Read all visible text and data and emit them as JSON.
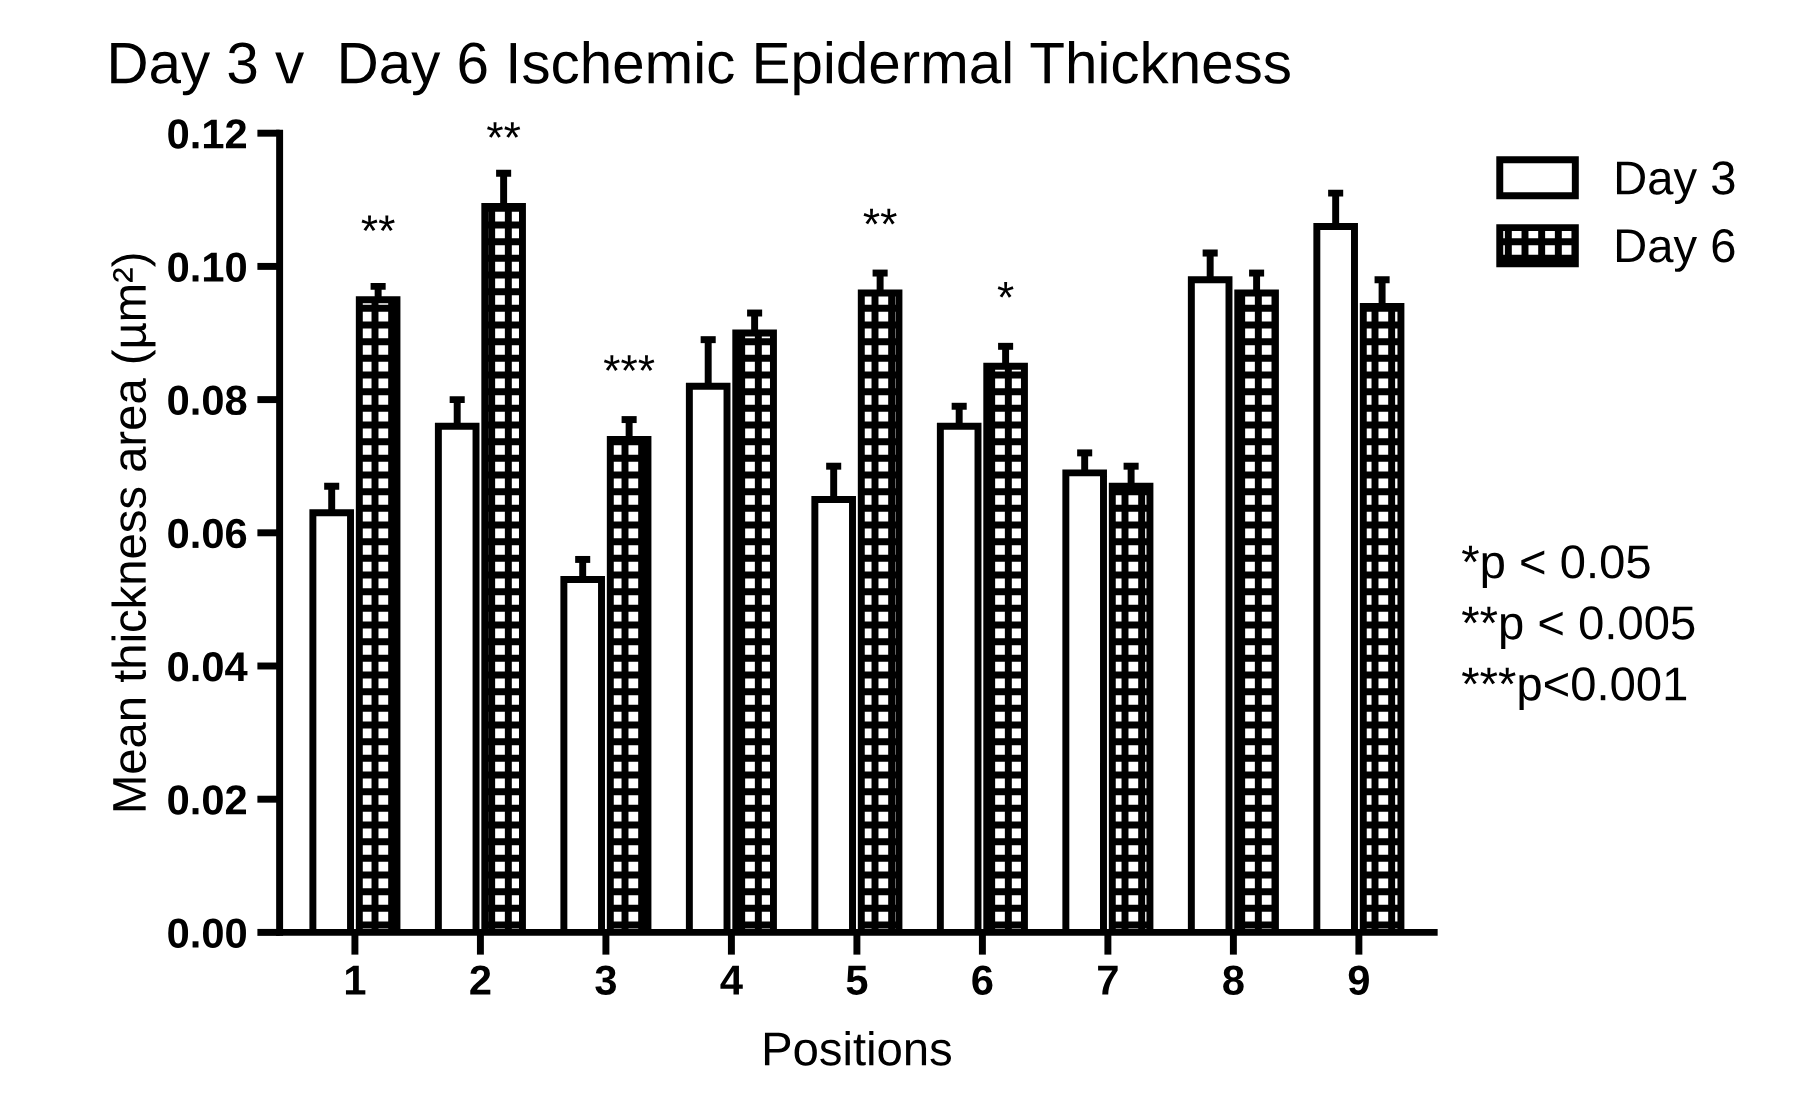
{
  "chart_data": {
    "type": "bar",
    "title": "Day 3 v  Day 6 Ischemic Epidermal Thickness",
    "xlabel": "Positions",
    "ylabel": "Mean thickness area (µm²)",
    "categories": [
      "1",
      "2",
      "3",
      "4",
      "5",
      "6",
      "7",
      "8",
      "9"
    ],
    "series": [
      {
        "name": "Day 3",
        "color": "#ffffff",
        "values": [
          0.063,
          0.076,
          0.053,
          0.082,
          0.065,
          0.076,
          0.069,
          0.098,
          0.106
        ],
        "errors": [
          [
            0.063,
            0.067
          ],
          [
            0.076,
            0.08
          ],
          [
            0.053,
            0.056
          ],
          [
            0.082,
            0.089
          ],
          [
            0.065,
            0.07
          ],
          [
            0.076,
            0.079
          ],
          [
            0.069,
            0.072
          ],
          [
            0.098,
            0.102
          ],
          [
            0.106,
            0.111
          ]
        ]
      },
      {
        "name": "Day 6",
        "color": "#000000",
        "values": [
          0.095,
          0.109,
          0.074,
          0.09,
          0.096,
          0.085,
          0.067,
          0.096,
          0.094
        ],
        "errors": [
          [
            0.095,
            0.097
          ],
          [
            0.109,
            0.114
          ],
          [
            0.074,
            0.077
          ],
          [
            0.09,
            0.093
          ],
          [
            0.096,
            0.099
          ],
          [
            0.085,
            0.088
          ],
          [
            0.067,
            0.07
          ],
          [
            0.096,
            0.099
          ],
          [
            0.094,
            0.098
          ]
        ]
      }
    ],
    "ylim": [
      0,
      0.12
    ],
    "yticks": [
      {
        "value": 0,
        "label": "0.00"
      },
      {
        "value": 0.02,
        "label": "0.02"
      },
      {
        "value": 0.04,
        "label": "0.04"
      },
      {
        "value": 0.06,
        "label": "0.06"
      },
      {
        "value": 0.08,
        "label": "0.08"
      },
      {
        "value": 0.1,
        "label": "0.10"
      },
      {
        "value": 0.12,
        "label": "0.12"
      }
    ],
    "grid": false,
    "legend": "top right",
    "annotations": [
      {
        "text": "**",
        "x": "1",
        "y": 0.095
      },
      {
        "text": "**",
        "x": "2",
        "y": 0.109
      },
      {
        "text": "***",
        "x": "3",
        "y": 0.074
      },
      {
        "text": "**",
        "x": "5",
        "y": 0.096
      },
      {
        "text": "*",
        "x": "6",
        "y": 0.085
      },
      "*p < 0.05",
      "**p < 0.005",
      "***p<0.001"
    ]
  }
}
